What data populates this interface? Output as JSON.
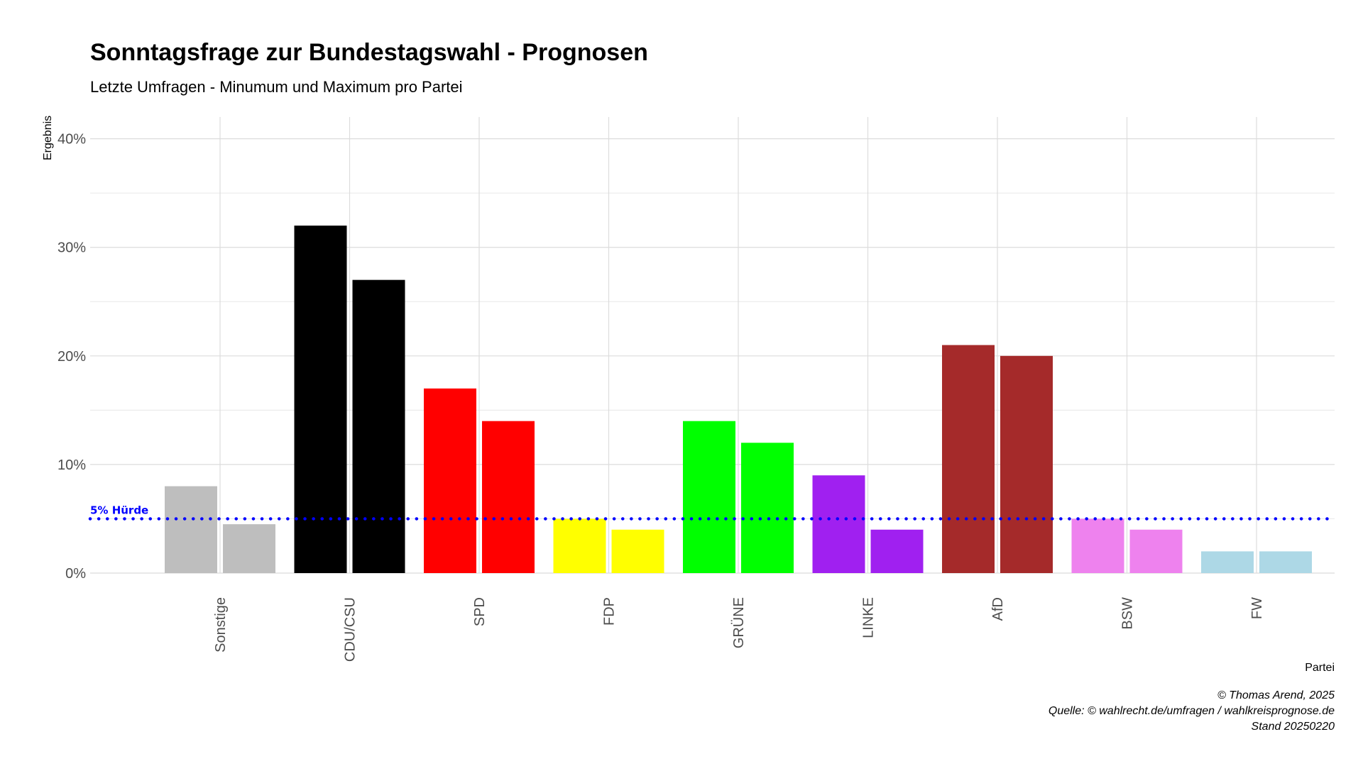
{
  "chart_data": {
    "type": "bar",
    "title": "Sonntagsfrage zur Bundestagswahl - Prognosen",
    "subtitle": "Letzte Umfragen - Minumum und Maximum pro Partei",
    "xlabel": "Partei",
    "ylabel": "Ergebnis",
    "ylim": [
      0,
      42
    ],
    "yticks": [
      0,
      10,
      20,
      30,
      40
    ],
    "ytick_labels": [
      "0%",
      "10%",
      "20%",
      "30%",
      "40%"
    ],
    "grid": true,
    "legend": "none",
    "categories": [
      "Sonstige",
      "CDU/CSU",
      "SPD",
      "FDP",
      "GRÜNE",
      "LINKE",
      "AfD",
      "BSW",
      "FW"
    ],
    "colors": [
      "#bebebe",
      "#000000",
      "#ff0000",
      "#ffff00",
      "#00ff00",
      "#a020f0",
      "#a52a2a",
      "#ee82ee",
      "#add8e6"
    ],
    "series": [
      {
        "values": [
          8,
          32,
          17,
          5,
          14,
          9,
          21,
          5,
          2
        ]
      },
      {
        "values": [
          4.5,
          27,
          14,
          4,
          12,
          4,
          20,
          4,
          2
        ]
      }
    ],
    "threshold": {
      "value": 5,
      "label": "5% Hürde",
      "color": "#0000ff"
    },
    "caption": [
      "© Thomas Arend, 2025",
      "Quelle: © wahlrecht.de/umfragen / wahlkreisprognose.de",
      "Stand 20250220"
    ]
  }
}
